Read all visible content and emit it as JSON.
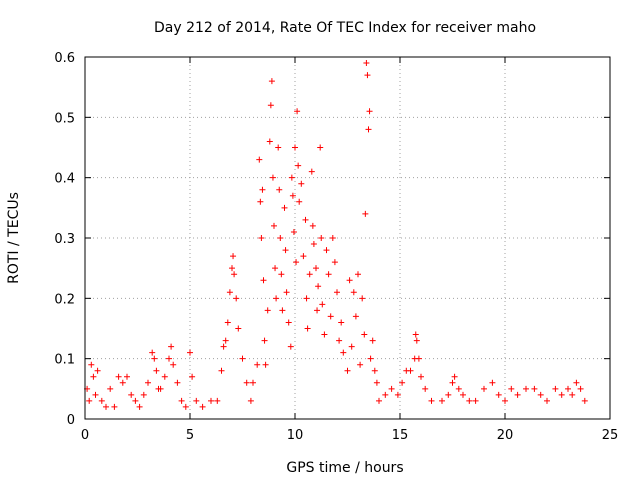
{
  "chart_data": {
    "type": "scatter",
    "title": "Day 212 of 2014, Rate Of TEC Index for receiver maho",
    "xlabel": "GPS time / hours",
    "ylabel": "ROTI / TECUs",
    "xlim": [
      0,
      25
    ],
    "ylim": [
      0,
      0.6
    ],
    "x_ticks": [
      "0",
      "5",
      "10",
      "15",
      "20",
      "25"
    ],
    "y_ticks": [
      "0",
      "0.1",
      "0.2",
      "0.3",
      "0.4",
      "0.5",
      "0.6"
    ],
    "grid": true,
    "marker": "+",
    "color": "#ff0000",
    "series": [
      {
        "name": "ROTI",
        "points": [
          [
            0.1,
            0.05
          ],
          [
            0.2,
            0.03
          ],
          [
            0.3,
            0.09
          ],
          [
            0.4,
            0.07
          ],
          [
            0.5,
            0.04
          ],
          [
            0.6,
            0.08
          ],
          [
            0.8,
            0.03
          ],
          [
            1.0,
            0.02
          ],
          [
            1.2,
            0.05
          ],
          [
            1.4,
            0.02
          ],
          [
            1.6,
            0.07
          ],
          [
            1.8,
            0.06
          ],
          [
            2.0,
            0.07
          ],
          [
            2.2,
            0.04
          ],
          [
            2.4,
            0.03
          ],
          [
            2.6,
            0.02
          ],
          [
            2.8,
            0.04
          ],
          [
            3.0,
            0.06
          ],
          [
            3.2,
            0.11
          ],
          [
            3.3,
            0.1
          ],
          [
            3.4,
            0.08
          ],
          [
            3.5,
            0.05
          ],
          [
            3.6,
            0.05
          ],
          [
            3.8,
            0.07
          ],
          [
            4.0,
            0.1
          ],
          [
            4.1,
            0.12
          ],
          [
            4.2,
            0.09
          ],
          [
            4.4,
            0.06
          ],
          [
            4.6,
            0.03
          ],
          [
            4.8,
            0.02
          ],
          [
            5.0,
            0.11
          ],
          [
            5.1,
            0.07
          ],
          [
            5.3,
            0.03
          ],
          [
            5.6,
            0.02
          ],
          [
            6.0,
            0.03
          ],
          [
            6.3,
            0.03
          ],
          [
            6.5,
            0.08
          ],
          [
            6.6,
            0.12
          ],
          [
            6.7,
            0.13
          ],
          [
            6.8,
            0.16
          ],
          [
            6.9,
            0.21
          ],
          [
            7.0,
            0.25
          ],
          [
            7.05,
            0.27
          ],
          [
            7.1,
            0.24
          ],
          [
            7.2,
            0.2
          ],
          [
            7.3,
            0.15
          ],
          [
            7.5,
            0.1
          ],
          [
            7.7,
            0.06
          ],
          [
            7.9,
            0.03
          ],
          [
            8.0,
            0.06
          ],
          [
            8.2,
            0.09
          ],
          [
            8.3,
            0.43
          ],
          [
            8.35,
            0.36
          ],
          [
            8.4,
            0.3
          ],
          [
            8.45,
            0.38
          ],
          [
            8.5,
            0.23
          ],
          [
            8.55,
            0.13
          ],
          [
            8.6,
            0.09
          ],
          [
            8.7,
            0.18
          ],
          [
            8.8,
            0.46
          ],
          [
            8.85,
            0.52
          ],
          [
            8.9,
            0.56
          ],
          [
            8.95,
            0.4
          ],
          [
            9.0,
            0.32
          ],
          [
            9.05,
            0.25
          ],
          [
            9.1,
            0.2
          ],
          [
            9.2,
            0.45
          ],
          [
            9.25,
            0.38
          ],
          [
            9.3,
            0.3
          ],
          [
            9.35,
            0.24
          ],
          [
            9.4,
            0.18
          ],
          [
            9.5,
            0.35
          ],
          [
            9.55,
            0.28
          ],
          [
            9.6,
            0.21
          ],
          [
            9.7,
            0.16
          ],
          [
            9.8,
            0.12
          ],
          [
            9.85,
            0.4
          ],
          [
            9.9,
            0.37
          ],
          [
            9.95,
            0.31
          ],
          [
            10.0,
            0.45
          ],
          [
            10.05,
            0.26
          ],
          [
            10.1,
            0.51
          ],
          [
            10.15,
            0.42
          ],
          [
            10.2,
            0.36
          ],
          [
            10.3,
            0.39
          ],
          [
            10.4,
            0.27
          ],
          [
            10.5,
            0.33
          ],
          [
            10.55,
            0.2
          ],
          [
            10.6,
            0.15
          ],
          [
            10.7,
            0.24
          ],
          [
            10.8,
            0.41
          ],
          [
            10.85,
            0.32
          ],
          [
            10.9,
            0.29
          ],
          [
            11.0,
            0.25
          ],
          [
            11.05,
            0.18
          ],
          [
            11.1,
            0.22
          ],
          [
            11.2,
            0.45
          ],
          [
            11.25,
            0.3
          ],
          [
            11.3,
            0.19
          ],
          [
            11.4,
            0.14
          ],
          [
            11.5,
            0.28
          ],
          [
            11.6,
            0.24
          ],
          [
            11.7,
            0.17
          ],
          [
            11.8,
            0.3
          ],
          [
            11.9,
            0.26
          ],
          [
            12.0,
            0.21
          ],
          [
            12.1,
            0.13
          ],
          [
            12.2,
            0.16
          ],
          [
            12.3,
            0.11
          ],
          [
            12.5,
            0.08
          ],
          [
            12.6,
            0.23
          ],
          [
            12.7,
            0.12
          ],
          [
            12.8,
            0.21
          ],
          [
            12.9,
            0.17
          ],
          [
            13.0,
            0.24
          ],
          [
            13.1,
            0.09
          ],
          [
            13.2,
            0.2
          ],
          [
            13.3,
            0.14
          ],
          [
            13.35,
            0.34
          ],
          [
            13.4,
            0.59
          ],
          [
            13.45,
            0.57
          ],
          [
            13.5,
            0.48
          ],
          [
            13.55,
            0.51
          ],
          [
            13.6,
            0.1
          ],
          [
            13.7,
            0.13
          ],
          [
            13.8,
            0.08
          ],
          [
            13.9,
            0.06
          ],
          [
            14.0,
            0.03
          ],
          [
            14.3,
            0.04
          ],
          [
            14.6,
            0.05
          ],
          [
            14.9,
            0.04
          ],
          [
            15.1,
            0.06
          ],
          [
            15.3,
            0.08
          ],
          [
            15.5,
            0.08
          ],
          [
            15.7,
            0.1
          ],
          [
            15.75,
            0.14
          ],
          [
            15.8,
            0.13
          ],
          [
            15.9,
            0.1
          ],
          [
            16.0,
            0.07
          ],
          [
            16.2,
            0.05
          ],
          [
            16.5,
            0.03
          ],
          [
            17.0,
            0.03
          ],
          [
            17.3,
            0.04
          ],
          [
            17.5,
            0.06
          ],
          [
            17.6,
            0.07
          ],
          [
            17.8,
            0.05
          ],
          [
            18.0,
            0.04
          ],
          [
            18.3,
            0.03
          ],
          [
            18.6,
            0.03
          ],
          [
            19.0,
            0.05
          ],
          [
            19.4,
            0.06
          ],
          [
            19.7,
            0.04
          ],
          [
            20.0,
            0.03
          ],
          [
            20.3,
            0.05
          ],
          [
            20.6,
            0.04
          ],
          [
            21.0,
            0.05
          ],
          [
            21.4,
            0.05
          ],
          [
            21.7,
            0.04
          ],
          [
            22.0,
            0.03
          ],
          [
            22.4,
            0.05
          ],
          [
            22.7,
            0.04
          ],
          [
            23.0,
            0.05
          ],
          [
            23.2,
            0.04
          ],
          [
            23.4,
            0.06
          ],
          [
            23.6,
            0.05
          ],
          [
            23.8,
            0.03
          ]
        ]
      }
    ]
  }
}
